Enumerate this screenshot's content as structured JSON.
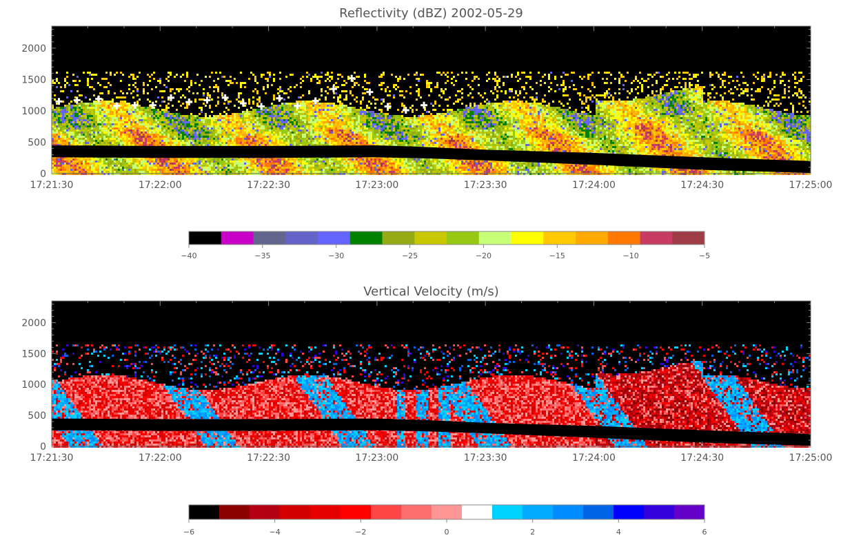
{
  "chart_data": [
    {
      "type": "heatmap",
      "title": "Reflectivity (dBZ)   2002-05-29",
      "xlabel": "",
      "ylabel": "",
      "x_ticks": [
        "17:21:30",
        "17:22:00",
        "17:22:30",
        "17:23:00",
        "17:23:30",
        "17:24:00",
        "17:24:30",
        "17:25:00"
      ],
      "x_range": [
        "17:21:30",
        "17:25:00"
      ],
      "y_ticks": [
        0,
        500,
        1000,
        1500,
        2000
      ],
      "ylim": [
        0,
        2350
      ],
      "gate_band": {
        "time_s": [
          0,
          30,
          60,
          90,
          105,
          120,
          150,
          180,
          210
        ],
        "top_m": [
          450,
          440,
          440,
          450,
          420,
          380,
          330,
          260,
          200
        ],
        "bottom_m": [
          260,
          250,
          250,
          260,
          240,
          210,
          140,
          60,
          10
        ]
      },
      "cloud_top_markers": {
        "time_s": [
          2,
          7,
          13,
          18,
          23,
          28,
          33,
          38,
          43,
          48,
          53,
          58,
          63,
          68,
          73,
          78,
          83,
          88,
          93,
          98,
          103
        ],
        "height_m": [
          1150,
          1170,
          1190,
          1080,
          1090,
          1090,
          1210,
          1140,
          1170,
          1210,
          1120,
          1070,
          1200,
          1080,
          1160,
          1350,
          1520,
          1300,
          1070,
          1010,
          1090
        ]
      },
      "colorbar": {
        "range": [
          -40,
          -5
        ],
        "ticks": [
          -40,
          -35,
          -30,
          -25,
          -20,
          -15,
          -10,
          -5
        ],
        "colors": [
          "#000000",
          "#c800c8",
          "#64648c",
          "#6464c8",
          "#6464ff",
          "#008200",
          "#96aa14",
          "#c8c800",
          "#96c814",
          "#c8ff78",
          "#ffff00",
          "#ffc800",
          "#ffaa00",
          "#ff7800",
          "#c83c64",
          "#a03c46"
        ]
      }
    },
    {
      "type": "heatmap",
      "title": "Vertical Velocity (m/s)",
      "xlabel": "",
      "ylabel": "",
      "x_ticks": [
        "17:21:30",
        "17:22:00",
        "17:22:30",
        "17:23:00",
        "17:23:30",
        "17:24:00",
        "17:24:30",
        "17:25:00"
      ],
      "x_range": [
        "17:21:30",
        "17:25:00"
      ],
      "y_ticks": [
        0,
        500,
        1000,
        1500,
        2000
      ],
      "ylim": [
        0,
        2350
      ],
      "colorbar": {
        "range": [
          -6,
          6
        ],
        "ticks": [
          -6,
          -4,
          -2,
          0,
          2,
          4,
          6
        ],
        "colors": [
          "#000000",
          "#8c0000",
          "#b40014",
          "#d20000",
          "#e60000",
          "#ff0000",
          "#ff4646",
          "#ff6e6e",
          "#ff9696",
          "#ffffff",
          "#00d2ff",
          "#00aaff",
          "#008cff",
          "#0064e6",
          "#0000ff",
          "#3200dc",
          "#6400c8"
        ]
      }
    }
  ]
}
